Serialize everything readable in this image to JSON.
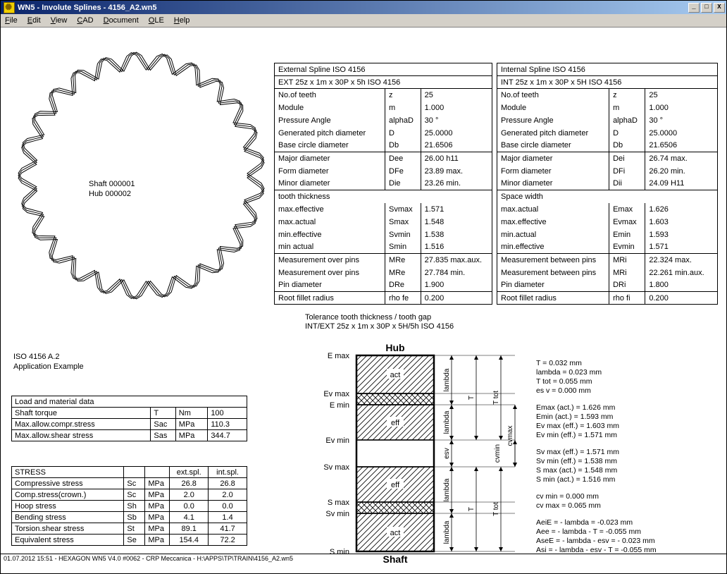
{
  "window": {
    "title": "WN5 - Involute Splines  -  4156_A2.wn5",
    "minimize": "_",
    "maximize": "□",
    "close": "X"
  },
  "menu": {
    "file": "File",
    "edit": "Edit",
    "view": "View",
    "cad": "CAD",
    "document": "Document",
    "ole": "OLE",
    "help": "Help"
  },
  "spline": {
    "shaft": "Shaft 000001",
    "hub": "Hub 000002",
    "teeth": 25
  },
  "iso": {
    "line1": "ISO 4156 A.2",
    "line2": "Application Example"
  },
  "load": {
    "title": "Load and material data",
    "rows": [
      [
        "Shaft torque",
        "T",
        "Nm",
        "100"
      ],
      [
        "Max.allow.compr.stress",
        "Sac",
        "MPa",
        "110.3"
      ],
      [
        "Max.allow.shear stress",
        "Sas",
        "MPa",
        "344.7"
      ]
    ]
  },
  "stress": {
    "title": "STRESS",
    "h1": "ext.spl.",
    "h2": "int.spl.",
    "rows": [
      [
        "Compressive stress",
        "Sc",
        "MPa",
        "26.8",
        "26.8"
      ],
      [
        "Comp.stress(crown.)",
        "Sc",
        "MPa",
        "2.0",
        "2.0"
      ],
      [
        "Hoop stress",
        "Sh",
        "MPa",
        "0.0",
        "0.0"
      ],
      [
        "Bending stress",
        "Sb",
        "MPa",
        "4.1",
        "1.4"
      ],
      [
        "Torsion.shear stress",
        "St",
        "MPa",
        "89.1",
        "41.7"
      ],
      [
        "Equivalent stress",
        "Se",
        "MPa",
        "154.4",
        "72.2"
      ]
    ]
  },
  "ext": {
    "title": "External Spline ISO 4156",
    "desig": "EXT 25z x 1m x 30P x 5h  ISO 4156",
    "rows": [
      [
        "No.of teeth",
        "z",
        "25"
      ],
      [
        "Module",
        "m",
        "1.000"
      ],
      [
        "Pressure Angle",
        "alphaD",
        "30 °"
      ],
      [
        "Generated pitch diameter",
        "D",
        "25.0000"
      ],
      [
        "Base circle diameter",
        "Db",
        "21.6506"
      ]
    ],
    "rows2": [
      [
        "Major diameter",
        "Dee",
        "26.00 h11"
      ],
      [
        "Form diameter",
        "DFe",
        "23.89 max."
      ],
      [
        "Minor diameter",
        "Die",
        "23.26 min."
      ]
    ],
    "thickhdr": "tooth thickness",
    "thick": [
      [
        " max.effective",
        "Svmax",
        "1.571"
      ],
      [
        " max.actual",
        "Smax",
        "1.548"
      ],
      [
        " min.effective",
        "Svmin",
        "1.538"
      ],
      [
        " min actual",
        "Smin",
        "1.516"
      ]
    ],
    "meas": [
      [
        "Measurement over pins",
        "MRe",
        "27.835 max.aux."
      ],
      [
        "Measurement over pins",
        "MRe",
        "27.784 min."
      ],
      [
        "Pin diameter",
        "DRe",
        "1.900"
      ]
    ],
    "root": [
      "Root fillet radius",
      "rho fe",
      "0.200"
    ]
  },
  "int": {
    "title": "Internal Spline ISO 4156",
    "desig": "INT 25z x 1m x 30P x 5H  ISO 4156",
    "rows": [
      [
        "No.of teeth",
        "z",
        "25"
      ],
      [
        "Module",
        "m",
        "1.000"
      ],
      [
        "Pressure Angle",
        "alphaD",
        "30 °"
      ],
      [
        "Generated pitch diameter",
        "D",
        "25.0000"
      ],
      [
        "Base circle diameter",
        "Db",
        "21.6506"
      ]
    ],
    "rows2": [
      [
        "Major diameter",
        "Dei",
        "26.74 max."
      ],
      [
        "Form diameter",
        "DFi",
        "26.20 min."
      ],
      [
        "Minor diameter",
        "Dii",
        "24.09 H11"
      ]
    ],
    "thickhdr": "Space width",
    "thick": [
      [
        " max.actual",
        "Emax",
        "1.626"
      ],
      [
        " max.effective",
        "Evmax",
        "1.603"
      ],
      [
        " min.actual",
        "Emin",
        "1.593"
      ],
      [
        " min.effective",
        "Evmin",
        "1.571"
      ]
    ],
    "meas": [
      [
        "Measurement between pins",
        "MRi",
        "22.324 max."
      ],
      [
        "Measurement between pins",
        "MRi",
        "22.261 min.aux."
      ],
      [
        "Pin diameter",
        "DRi",
        "1.800"
      ]
    ],
    "root": [
      "Root fillet radius",
      "rho fi",
      "0.200"
    ]
  },
  "tol": {
    "title1": "Tolerance tooth thickness / tooth gap",
    "title2": "INT/EXT 25z x 1m x 30P x 5H/5h  ISO 4156",
    "hub": "Hub",
    "shaft": "Shaft",
    "labels": [
      "E max",
      "Ev max",
      "E min",
      "Ev min",
      "Sv max",
      "S max",
      "Sv min",
      "S min"
    ],
    "right": [
      "T = 0.032 mm\nlambda = 0.023 mm\nT tot = 0.055 mm\nes v = 0.000 mm",
      "Emax (act.) = 1.626 mm\nEmin (act.) = 1.593 mm\nEv max (eff.) = 1.603 mm\nEv min (eff.) = 1.571 mm",
      "Sv max (eff.) = 1.571 mm\nSv min (eff.) = 1.538 mm\nS max (act.) = 1.548 mm\nS min (act.) = 1.516 mm",
      "cv min = 0.000 mm\ncv max = 0.065 mm",
      "AeiE = - lambda = -0.023 mm\nAee = - lambda - T = -0.055 mm\nAseE = - lambda - esv = - 0.023 mm\nAsi = - lambda - esv - T = -0.055 mm"
    ]
  },
  "status": "01.07.2012 15:51 - HEXAGON WN5 V4.0 #0062 - CRP Meccanica - H:\\APPS\\TP\\TRAIN\\4156_A2.wn5",
  "style": {
    "hatch_stroke": "#000000",
    "hatch_width": 0.8
  }
}
